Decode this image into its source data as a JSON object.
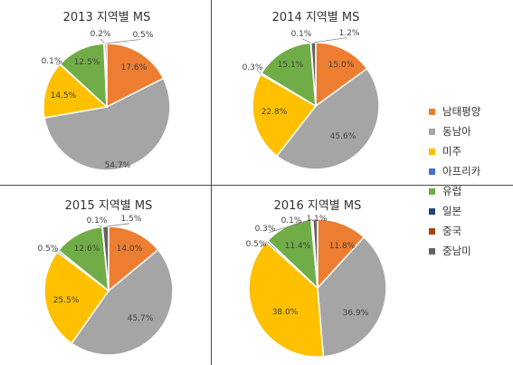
{
  "chart_data": [
    {
      "type": "pie",
      "title": "2013 지역별 MS",
      "slices": [
        {
          "category": "남태평양",
          "value": 17.6,
          "label": "17.6%"
        },
        {
          "category": "동남아",
          "value": 54.7,
          "label": "54.7%"
        },
        {
          "category": "미주",
          "value": 14.5,
          "label": "14.5%"
        },
        {
          "category": "아프리카",
          "value": 0.1,
          "label": "0.1%"
        },
        {
          "category": "유럽",
          "value": 12.5,
          "label": "12.5%"
        },
        {
          "category": "일본",
          "value": 0.0,
          "label": ""
        },
        {
          "category": "중국",
          "value": 0.2,
          "label": "0.2%"
        },
        {
          "category": "중남미",
          "value": 0.5,
          "label": "0.5%"
        }
      ]
    },
    {
      "type": "pie",
      "title": "2014 지역별 MS",
      "slices": [
        {
          "category": "남태평양",
          "value": 15.0,
          "label": "15.0%"
        },
        {
          "category": "동남아",
          "value": 45.6,
          "label": "45.6%"
        },
        {
          "category": "미주",
          "value": 22.8,
          "label": "22.8%"
        },
        {
          "category": "아프리카",
          "value": 0.3,
          "label": "0.3%"
        },
        {
          "category": "유럽",
          "value": 15.1,
          "label": "15.1%"
        },
        {
          "category": "일본",
          "value": 0.0,
          "label": ""
        },
        {
          "category": "중국",
          "value": 0.1,
          "label": "0.1%"
        },
        {
          "category": "중남미",
          "value": 1.2,
          "label": "1.2%"
        }
      ]
    },
    {
      "type": "pie",
      "title": "2015 지역별 MS",
      "slices": [
        {
          "category": "남태평양",
          "value": 14.0,
          "label": "14.0%"
        },
        {
          "category": "동남아",
          "value": 45.7,
          "label": "45.7%"
        },
        {
          "category": "미주",
          "value": 25.5,
          "label": "25.5%"
        },
        {
          "category": "아프리카",
          "value": 0.5,
          "label": "0.5%"
        },
        {
          "category": "유럽",
          "value": 12.6,
          "label": "12.6%"
        },
        {
          "category": "일본",
          "value": 0.0,
          "label": ""
        },
        {
          "category": "중국",
          "value": 0.1,
          "label": "0.1%"
        },
        {
          "category": "중남미",
          "value": 1.5,
          "label": "1.5%"
        }
      ]
    },
    {
      "type": "pie",
      "title": "2016 지역별 MS",
      "slices": [
        {
          "category": "남태평양",
          "value": 11.8,
          "label": "11.8%"
        },
        {
          "category": "동남아",
          "value": 36.9,
          "label": "36.9%"
        },
        {
          "category": "미주",
          "value": 38.0,
          "label": "38.0%"
        },
        {
          "category": "아프리카",
          "value": 0.5,
          "label": "0.5%"
        },
        {
          "category": "유럽",
          "value": 11.4,
          "label": "11.4%"
        },
        {
          "category": "일본",
          "value": 0.3,
          "label": "0.3%"
        },
        {
          "category": "중국",
          "value": 0.1,
          "label": "0.1%"
        },
        {
          "category": "중남미",
          "value": 1.1,
          "label": "1.1%"
        }
      ]
    }
  ],
  "legend": [
    {
      "label": "남태평양",
      "color": "#ED7D31"
    },
    {
      "label": "동남아",
      "color": "#A5A5A5"
    },
    {
      "label": "미주",
      "color": "#FFC000"
    },
    {
      "label": "아프리카",
      "color": "#4472C4"
    },
    {
      "label": "유럽",
      "color": "#70AD47"
    },
    {
      "label": "일본",
      "color": "#264478"
    },
    {
      "label": "중국",
      "color": "#9E480E"
    },
    {
      "label": "중남미",
      "color": "#636363"
    }
  ],
  "legend_placement": "right",
  "label_color": "#404040"
}
